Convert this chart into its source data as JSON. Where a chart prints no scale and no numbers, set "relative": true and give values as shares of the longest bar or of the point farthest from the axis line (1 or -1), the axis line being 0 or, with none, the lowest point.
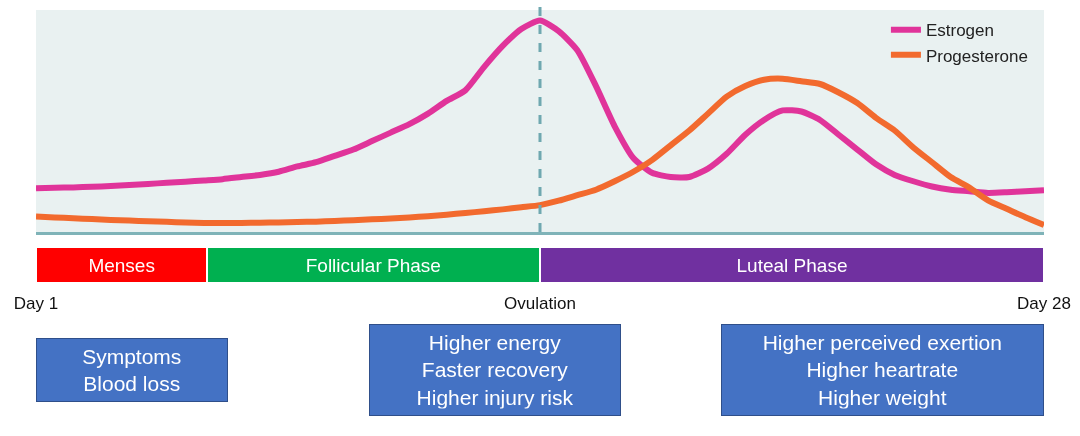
{
  "chart_data": {
    "type": "line",
    "relative": true,
    "legend": "top right",
    "grid": false,
    "marker": "none",
    "line_style": "solid",
    "categories": [
      "Day 1",
      null,
      null,
      null,
      null,
      null,
      null,
      null,
      null,
      null,
      null,
      null,
      null,
      null,
      null,
      null,
      null,
      null,
      null,
      null,
      null,
      null,
      null,
      null,
      null,
      null,
      null,
      "Ovulation",
      null,
      null,
      null,
      null,
      null,
      null,
      null,
      null,
      null,
      null,
      null,
      null,
      null,
      null,
      null,
      null,
      null,
      null,
      null,
      null,
      null,
      null,
      null,
      null,
      null,
      null,
      "Day 28"
    ],
    "series": [
      {
        "name": "Estrogen",
        "color": "#e0349a",
        "values": [
          0.207,
          0.209,
          0.211,
          0.214,
          0.217,
          0.222,
          0.227,
          0.233,
          0.238,
          0.244,
          0.25,
          0.26,
          0.27,
          0.285,
          0.31,
          0.33,
          0.36,
          0.39,
          0.43,
          0.47,
          0.51,
          0.56,
          0.62,
          0.67,
          0.78,
          0.88,
          0.96,
          1,
          0.95,
          0.86,
          0.69,
          0.5,
          0.35,
          0.28,
          0.26,
          0.26,
          0.3,
          0.37,
          0.46,
          0.53,
          0.575,
          0.57,
          0.53,
          0.46,
          0.39,
          0.32,
          0.27,
          0.24,
          0.215,
          0.2,
          0.193,
          0.185,
          0.188,
          0.193,
          0.198
        ]
      },
      {
        "name": "Progesterone",
        "color": "#f26a2e",
        "values": [
          0.073,
          0.069,
          0.065,
          0.061,
          0.057,
          0.054,
          0.051,
          0.048,
          0.045,
          0.043,
          0.042,
          0.043,
          0.044,
          0.045,
          0.047,
          0.049,
          0.052,
          0.056,
          0.06,
          0.064,
          0.069,
          0.075,
          0.082,
          0.09,
          0.098,
          0.107,
          0.117,
          0.127,
          0.148,
          0.174,
          0.2,
          0.24,
          0.285,
          0.34,
          0.41,
          0.48,
          0.56,
          0.64,
          0.69,
          0.72,
          0.725,
          0.713,
          0.7,
          0.66,
          0.61,
          0.54,
          0.48,
          0.4,
          0.33,
          0.26,
          0.21,
          0.15,
          0.11,
          0.07,
          0.033
        ]
      }
    ],
    "ref_lines": [
      {
        "axis": "x",
        "value": "Ovulation",
        "color": "#6fa8b0",
        "line_style": "dashed"
      }
    ],
    "annotations": [
      "Menses",
      "Follicular Phase",
      "Luteal Phase",
      "Symptoms\nBlood loss",
      "Higher energy\nFaster recovery\nHigher injury risk",
      "Higher perceived exertion\nHigher heartrate\nHigher weight"
    ]
  }
}
